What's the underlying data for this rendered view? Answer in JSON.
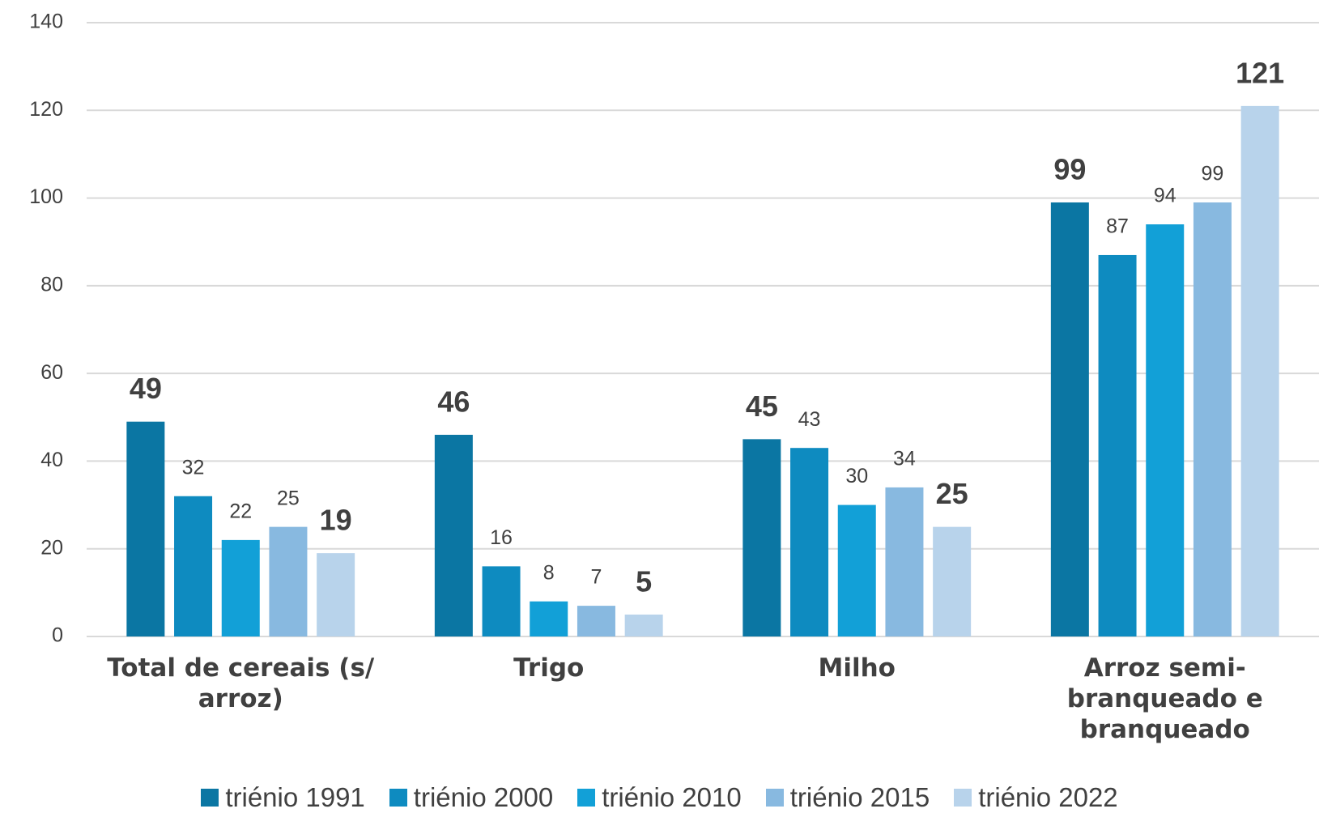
{
  "chart_data": {
    "type": "bar",
    "categories": [
      "Total de cereais (s/ arroz)",
      "Trigo",
      "Milho",
      "Arroz semi-branqueado e branqueado"
    ],
    "series": [
      {
        "name": "triénio 1991",
        "color": "#0b76a3",
        "label_bold": true,
        "values": [
          49,
          46,
          45,
          99
        ]
      },
      {
        "name": "triénio 2000",
        "color": "#0e8bc0",
        "label_bold": false,
        "values": [
          32,
          16,
          43,
          87
        ]
      },
      {
        "name": "triénio 2010",
        "color": "#12a0d7",
        "label_bold": false,
        "values": [
          22,
          8,
          30,
          94
        ]
      },
      {
        "name": "triénio 2015",
        "color": "#88b9e0",
        "label_bold": false,
        "values": [
          25,
          7,
          34,
          99
        ]
      },
      {
        "name": "triénio 2022",
        "color": "#b8d3eb",
        "label_bold": true,
        "values": [
          19,
          5,
          25,
          121
        ]
      }
    ],
    "ylim": [
      0,
      140
    ],
    "yticks": [
      0,
      20,
      40,
      60,
      80,
      100,
      120,
      140
    ],
    "grid": true,
    "legend": "bottom"
  }
}
